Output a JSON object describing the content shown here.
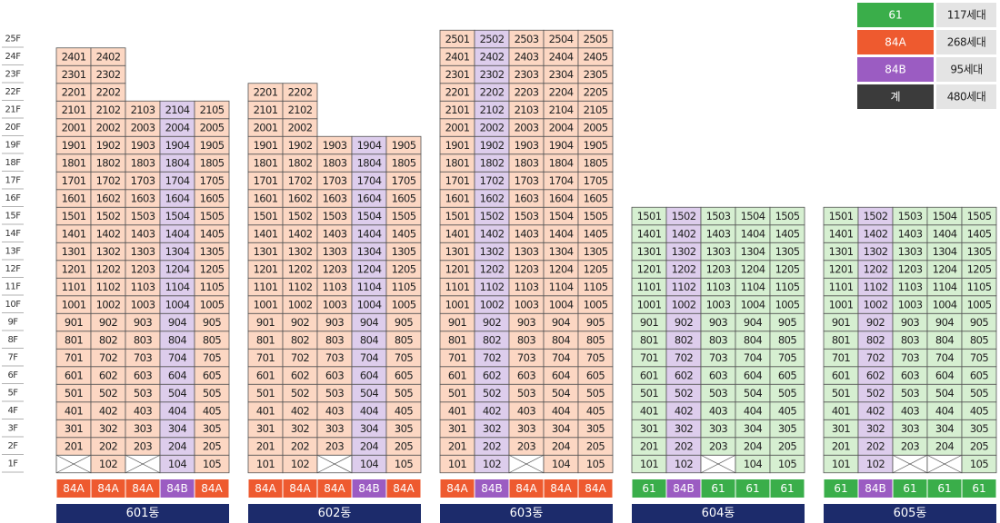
{
  "floors": [
    "1F",
    "2F",
    "3F",
    "4F",
    "5F",
    "6F",
    "7F",
    "8F",
    "9F",
    "10F",
    "11F",
    "12F",
    "13F",
    "14F",
    "15F",
    "16F",
    "17F",
    "18F",
    "19F",
    "20F",
    "21F",
    "22F",
    "23F",
    "24F",
    "25F"
  ],
  "legend": [
    {
      "label": "61",
      "count": "117세대",
      "color": "#3aae4a"
    },
    {
      "label": "84A",
      "count": "268세대",
      "color": "#ee5a2f"
    },
    {
      "label": "84B",
      "count": "95세대",
      "color": "#9b5cc2"
    },
    {
      "label": "계",
      "count": "480세대",
      "color": "#3b3b3b"
    }
  ],
  "cell_fills": {
    "61": "#d6efd1",
    "84A": "#fcd7c3",
    "84B": "#ddcdec"
  },
  "buildings": [
    {
      "name": "601동",
      "types": [
        "84A",
        "84A",
        "84A",
        "84B",
        "84A"
      ],
      "rows": [
        [
          null,
          "102",
          null,
          "104",
          "105"
        ],
        [
          "201",
          "202",
          "203",
          "204",
          "205"
        ],
        [
          "301",
          "302",
          "303",
          "304",
          "305"
        ],
        [
          "401",
          "402",
          "403",
          "404",
          "405"
        ],
        [
          "501",
          "502",
          "503",
          "504",
          "505"
        ],
        [
          "601",
          "602",
          "603",
          "604",
          "605"
        ],
        [
          "701",
          "702",
          "703",
          "704",
          "705"
        ],
        [
          "801",
          "802",
          "803",
          "804",
          "805"
        ],
        [
          "901",
          "902",
          "903",
          "904",
          "905"
        ],
        [
          "1001",
          "1002",
          "1003",
          "1004",
          "1005"
        ],
        [
          "1101",
          "1102",
          "1103",
          "1104",
          "1105"
        ],
        [
          "1201",
          "1202",
          "1203",
          "1204",
          "1205"
        ],
        [
          "1301",
          "1302",
          "1303",
          "1304",
          "1305"
        ],
        [
          "1401",
          "1402",
          "1403",
          "1404",
          "1405"
        ],
        [
          "1501",
          "1502",
          "1503",
          "1504",
          "1505"
        ],
        [
          "1601",
          "1602",
          "1603",
          "1604",
          "1605"
        ],
        [
          "1701",
          "1702",
          "1703",
          "1704",
          "1705"
        ],
        [
          "1801",
          "1802",
          "1803",
          "1804",
          "1805"
        ],
        [
          "1901",
          "1902",
          "1903",
          "1904",
          "1905"
        ],
        [
          "2001",
          "2002",
          "2003",
          "2004",
          "2005"
        ],
        [
          "2101",
          "2102",
          "2103",
          "2104",
          "2105"
        ],
        [
          "2201",
          "2202"
        ],
        [
          "2301",
          "2302"
        ],
        [
          "2401",
          "2402"
        ]
      ]
    },
    {
      "name": "602동",
      "types": [
        "84A",
        "84A",
        "84A",
        "84B",
        "84A"
      ],
      "rows": [
        [
          "101",
          "102",
          null,
          "104",
          "105"
        ],
        [
          "201",
          "202",
          "203",
          "204",
          "205"
        ],
        [
          "301",
          "302",
          "303",
          "304",
          "305"
        ],
        [
          "401",
          "402",
          "403",
          "404",
          "405"
        ],
        [
          "501",
          "502",
          "503",
          "504",
          "505"
        ],
        [
          "601",
          "602",
          "603",
          "604",
          "605"
        ],
        [
          "701",
          "702",
          "703",
          "704",
          "705"
        ],
        [
          "801",
          "802",
          "803",
          "804",
          "805"
        ],
        [
          "901",
          "902",
          "903",
          "904",
          "905"
        ],
        [
          "1001",
          "1002",
          "1003",
          "1004",
          "1005"
        ],
        [
          "1101",
          "1102",
          "1103",
          "1104",
          "1105"
        ],
        [
          "1201",
          "1202",
          "1203",
          "1204",
          "1205"
        ],
        [
          "1301",
          "1302",
          "1303",
          "1304",
          "1305"
        ],
        [
          "1401",
          "1402",
          "1403",
          "1404",
          "1405"
        ],
        [
          "1501",
          "1502",
          "1503",
          "1504",
          "1505"
        ],
        [
          "1601",
          "1602",
          "1603",
          "1604",
          "1605"
        ],
        [
          "1701",
          "1702",
          "1703",
          "1704",
          "1705"
        ],
        [
          "1801",
          "1802",
          "1803",
          "1804",
          "1805"
        ],
        [
          "1901",
          "1902",
          "1903",
          "1904",
          "1905"
        ],
        [
          "2001",
          "2002"
        ],
        [
          "2101",
          "2102"
        ],
        [
          "2201",
          "2202"
        ]
      ]
    },
    {
      "name": "603동",
      "types": [
        "84A",
        "84B",
        "84A",
        "84A",
        "84A"
      ],
      "rows": [
        [
          "101",
          "102",
          null,
          "104",
          "105"
        ],
        [
          "201",
          "202",
          "203",
          "204",
          "205"
        ],
        [
          "301",
          "302",
          "303",
          "304",
          "305"
        ],
        [
          "401",
          "402",
          "403",
          "404",
          "405"
        ],
        [
          "501",
          "502",
          "503",
          "504",
          "505"
        ],
        [
          "601",
          "602",
          "603",
          "604",
          "605"
        ],
        [
          "701",
          "702",
          "703",
          "704",
          "705"
        ],
        [
          "801",
          "802",
          "803",
          "804",
          "805"
        ],
        [
          "901",
          "902",
          "903",
          "904",
          "905"
        ],
        [
          "1001",
          "1002",
          "1003",
          "1004",
          "1005"
        ],
        [
          "1101",
          "1102",
          "1103",
          "1104",
          "1105"
        ],
        [
          "1201",
          "1202",
          "1203",
          "1204",
          "1205"
        ],
        [
          "1301",
          "1302",
          "1303",
          "1304",
          "1305"
        ],
        [
          "1401",
          "1402",
          "1403",
          "1404",
          "1405"
        ],
        [
          "1501",
          "1502",
          "1503",
          "1504",
          "1505"
        ],
        [
          "1601",
          "1602",
          "1603",
          "1604",
          "1605"
        ],
        [
          "1701",
          "1702",
          "1703",
          "1704",
          "1705"
        ],
        [
          "1801",
          "1802",
          "1803",
          "1804",
          "1805"
        ],
        [
          "1901",
          "1902",
          "1903",
          "1904",
          "1905"
        ],
        [
          "2001",
          "2002",
          "2003",
          "2004",
          "2005"
        ],
        [
          "2101",
          "2102",
          "2103",
          "2104",
          "2105"
        ],
        [
          "2201",
          "2202",
          "2203",
          "2204",
          "2205"
        ],
        [
          "2301",
          "2302",
          "2303",
          "2304",
          "2305"
        ],
        [
          "2401",
          "2402",
          "2403",
          "2404",
          "2405"
        ],
        [
          "2501",
          "2502",
          "2503",
          "2504",
          "2505"
        ]
      ]
    },
    {
      "name": "604동",
      "types": [
        "61",
        "84B",
        "61",
        "61",
        "61"
      ],
      "rows": [
        [
          "101",
          "102",
          null,
          "104",
          "105"
        ],
        [
          "201",
          "202",
          "203",
          "204",
          "205"
        ],
        [
          "301",
          "302",
          "303",
          "304",
          "305"
        ],
        [
          "401",
          "402",
          "403",
          "404",
          "405"
        ],
        [
          "501",
          "502",
          "503",
          "504",
          "505"
        ],
        [
          "601",
          "602",
          "603",
          "604",
          "605"
        ],
        [
          "701",
          "702",
          "703",
          "704",
          "705"
        ],
        [
          "801",
          "802",
          "803",
          "804",
          "805"
        ],
        [
          "901",
          "902",
          "903",
          "904",
          "905"
        ],
        [
          "1001",
          "1002",
          "1003",
          "1004",
          "1005"
        ],
        [
          "1101",
          "1102",
          "1103",
          "1104",
          "1105"
        ],
        [
          "1201",
          "1202",
          "1203",
          "1204",
          "1205"
        ],
        [
          "1301",
          "1302",
          "1303",
          "1304",
          "1305"
        ],
        [
          "1401",
          "1402",
          "1403",
          "1404",
          "1405"
        ],
        [
          "1501",
          "1502",
          "1503",
          "1504",
          "1505"
        ]
      ]
    },
    {
      "name": "605동",
      "types": [
        "61",
        "84B",
        "61",
        "61",
        "61"
      ],
      "rows": [
        [
          "101",
          "102",
          null,
          null,
          "105"
        ],
        [
          "201",
          "202",
          "203",
          "204",
          "205"
        ],
        [
          "301",
          "302",
          "303",
          "304",
          "305"
        ],
        [
          "401",
          "402",
          "403",
          "404",
          "405"
        ],
        [
          "501",
          "502",
          "503",
          "504",
          "505"
        ],
        [
          "601",
          "602",
          "603",
          "604",
          "605"
        ],
        [
          "701",
          "702",
          "703",
          "704",
          "705"
        ],
        [
          "801",
          "802",
          "803",
          "804",
          "805"
        ],
        [
          "901",
          "902",
          "903",
          "904",
          "905"
        ],
        [
          "1001",
          "1002",
          "1003",
          "1004",
          "1005"
        ],
        [
          "1101",
          "1102",
          "1103",
          "1104",
          "1105"
        ],
        [
          "1201",
          "1202",
          "1203",
          "1204",
          "1205"
        ],
        [
          "1301",
          "1302",
          "1303",
          "1304",
          "1305"
        ],
        [
          "1401",
          "1402",
          "1403",
          "1404",
          "1405"
        ],
        [
          "1501",
          "1502",
          "1503",
          "1504",
          "1505"
        ]
      ]
    }
  ]
}
